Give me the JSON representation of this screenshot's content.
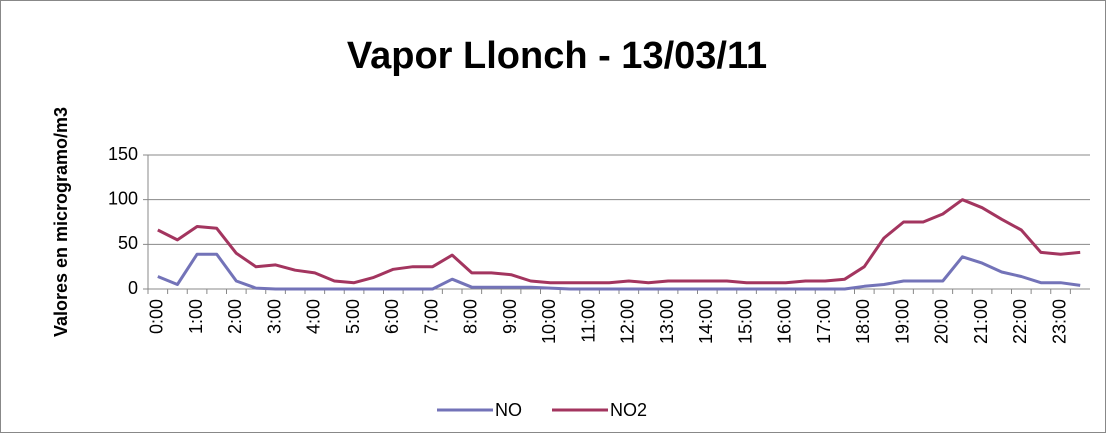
{
  "chart_data": {
    "type": "line",
    "title": "Vapor Llonch - 13/03/11",
    "y_label": "Valores en microgramo/m3",
    "categories": [
      "0:00",
      null,
      "1:00",
      null,
      "2:00",
      null,
      "3:00",
      null,
      "4:00",
      null,
      "5:00",
      null,
      "6:00",
      null,
      "7:00",
      null,
      "8:00",
      null,
      "9:00",
      null,
      "10:00",
      null,
      "11:00",
      null,
      "12:00",
      null,
      "13:00",
      null,
      "14:00",
      null,
      "15:00",
      null,
      "16:00",
      null,
      "17:00",
      null,
      "18:00",
      null,
      "19:00",
      null,
      "20:00",
      null,
      "21:00",
      null,
      "22:00",
      null,
      "23:00",
      null
    ],
    "series": [
      {
        "name": "NO",
        "color": "#7373b8",
        "values": [
          14,
          5,
          39,
          39,
          9,
          1,
          0,
          0,
          0,
          0,
          0,
          0,
          0,
          0,
          0,
          11,
          2,
          2,
          2,
          2,
          1,
          0,
          0,
          0,
          0,
          0,
          0,
          0,
          0,
          0,
          0,
          0,
          0,
          0,
          0,
          0,
          3,
          5,
          9,
          9,
          9,
          36,
          29,
          19,
          14,
          7,
          7,
          4
        ]
      },
      {
        "name": "NO2",
        "color": "#a3355f",
        "values": [
          66,
          55,
          70,
          68,
          40,
          25,
          27,
          21,
          18,
          9,
          7,
          13,
          22,
          25,
          25,
          38,
          18,
          18,
          16,
          9,
          7,
          7,
          7,
          7,
          9,
          7,
          9,
          9,
          9,
          9,
          7,
          7,
          7,
          9,
          9,
          11,
          25,
          57,
          75,
          75,
          84,
          100,
          91,
          78,
          66,
          41,
          39,
          41
        ]
      }
    ],
    "ylim": [
      0,
      150
    ],
    "yticks": [
      0,
      50,
      100,
      150
    ],
    "grid": true,
    "legend": "bottom"
  }
}
